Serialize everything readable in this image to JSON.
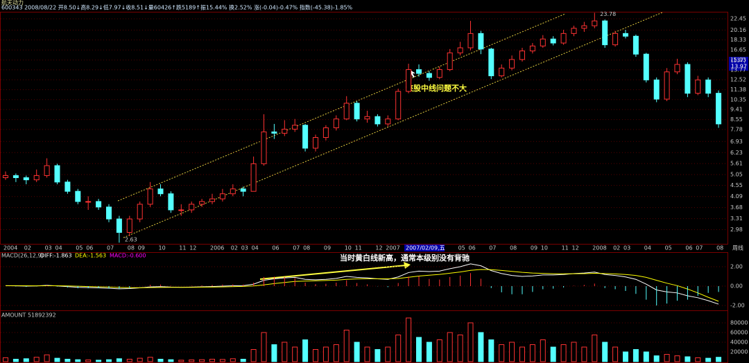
{
  "header": {
    "name": "航天动力",
    "quote": "600343 2008/08/22 开8.50↓高8.29↓低7.97↓收8.51↓量60426↑跌5189↑振15.44% 换2.52% 涨(-0.04)-0.47% 指数(-45.38)-1.85%"
  },
  "chart_data": [
    {
      "type": "candlestick",
      "period": "周线",
      "log_scale": true,
      "grid": true,
      "up_color": "#ff3232",
      "down_color": "#54ffff",
      "annotations": [
        "该股中线问题不大"
      ],
      "cursor": {
        "date": "2007/02/09,五",
        "price": 13.97,
        "index": "(137)"
      },
      "categories": [
        "2004",
        null,
        "02",
        null,
        "03",
        "04",
        null,
        "05",
        "06",
        null,
        "07",
        null,
        "08",
        "09",
        null,
        "10",
        null,
        "11",
        "12",
        null,
        "2006",
        null,
        "02",
        "03",
        "04",
        null,
        "06",
        null,
        "07",
        "08",
        null,
        "09",
        null,
        "10",
        "11",
        null,
        "12",
        "2007",
        null,
        null,
        null,
        null,
        null,
        null,
        "05",
        "06",
        null,
        "07",
        null,
        "08",
        null,
        "09",
        "10",
        null,
        "11",
        "12",
        null,
        "2008",
        null,
        "02",
        "03",
        null,
        "04",
        null,
        "05",
        null,
        "06",
        "07",
        null,
        "08"
      ],
      "open": [
        4.9,
        5.0,
        4.9,
        4.8,
        5.0,
        5.5,
        4.7,
        4.3,
        3.9,
        3.9,
        3.7,
        3.3,
        2.9,
        3.3,
        3.8,
        4.4,
        4.2,
        3.6,
        3.6,
        3.8,
        3.9,
        4.0,
        4.2,
        4.4,
        4.3,
        5.6,
        7.6,
        7.5,
        7.8,
        8.1,
        6.5,
        7.2,
        7.9,
        8.6,
        10.0,
        8.6,
        8.8,
        8.2,
        8.6,
        11.2,
        13.8,
        13.3,
        12.8,
        13.8,
        16.2,
        17.0,
        19.5,
        16.8,
        13.0,
        14.0,
        15.2,
        16.5,
        17.3,
        18.5,
        17.8,
        19.5,
        20.5,
        21.0,
        22.0,
        17.5,
        19.5,
        19.0,
        16.0,
        12.5,
        10.4,
        13.5,
        14.5,
        11.0,
        12.5,
        11.0
      ],
      "high": [
        5.2,
        5.1,
        5.0,
        5.3,
        5.9,
        5.6,
        4.8,
        4.4,
        4.1,
        4.0,
        3.8,
        3.4,
        3.4,
        3.9,
        4.7,
        4.6,
        4.3,
        3.8,
        3.9,
        4.0,
        4.2,
        4.4,
        4.6,
        4.5,
        6.0,
        9.0,
        8.2,
        8.5,
        8.6,
        8.2,
        7.4,
        8.1,
        8.9,
        10.7,
        10.2,
        9.3,
        9.0,
        8.9,
        11.5,
        14.6,
        14.5,
        13.6,
        14.2,
        16.8,
        18.0,
        22.0,
        20.0,
        17.0,
        14.5,
        15.8,
        17.0,
        17.8,
        19.2,
        19.0,
        20.2,
        21.0,
        21.8,
        23.78,
        22.3,
        20.0,
        20.2,
        19.3,
        16.2,
        12.8,
        14.0,
        15.3,
        14.8,
        13.0,
        12.8,
        11.3
      ],
      "low": [
        4.8,
        4.7,
        4.6,
        4.7,
        4.9,
        4.6,
        4.2,
        3.8,
        3.6,
        3.6,
        3.2,
        2.63,
        2.8,
        3.2,
        3.7,
        4.1,
        3.5,
        3.4,
        3.5,
        3.7,
        3.8,
        3.9,
        4.1,
        4.1,
        4.3,
        5.5,
        7.1,
        7.3,
        7.6,
        6.3,
        6.3,
        7.0,
        7.7,
        8.5,
        8.4,
        8.3,
        8.0,
        8.0,
        8.5,
        11.0,
        12.9,
        12.4,
        12.6,
        13.6,
        15.8,
        16.6,
        16.0,
        12.6,
        12.8,
        13.7,
        14.9,
        16.1,
        17.0,
        17.4,
        17.5,
        19.0,
        19.8,
        20.5,
        17.0,
        17.2,
        18.6,
        15.6,
        12.2,
        10.1,
        10.2,
        13.2,
        10.6,
        10.8,
        10.6,
        7.9
      ],
      "close": [
        5.0,
        4.9,
        4.8,
        5.0,
        5.5,
        4.7,
        4.3,
        3.9,
        3.9,
        3.7,
        3.3,
        2.9,
        3.3,
        3.8,
        4.4,
        4.2,
        3.6,
        3.6,
        3.8,
        3.9,
        4.0,
        4.2,
        4.4,
        4.3,
        5.6,
        7.6,
        7.5,
        7.8,
        8.1,
        6.5,
        7.2,
        7.9,
        8.6,
        10.0,
        8.6,
        8.8,
        8.2,
        8.6,
        11.2,
        13.8,
        13.3,
        12.8,
        13.8,
        16.2,
        17.0,
        19.5,
        16.8,
        13.0,
        14.0,
        15.2,
        16.5,
        17.3,
        18.5,
        17.8,
        19.5,
        20.5,
        21.0,
        22.0,
        17.5,
        19.5,
        19.0,
        16.0,
        12.5,
        10.4,
        13.5,
        14.5,
        11.0,
        12.5,
        11.0,
        8.2
      ],
      "ylim": [
        2.6,
        23.85
      ],
      "yticks": [
        22.45,
        20.16,
        18.33,
        16.65,
        15.13,
        13.77,
        12.52,
        11.38,
        10.35,
        9.41,
        8.55,
        7.78,
        6.93,
        6.23,
        5.61,
        5.05,
        4.55,
        4.09,
        3.68,
        3.31,
        2.98
      ]
    },
    {
      "type": "macd",
      "title": "MACD(26,12,9)",
      "grid": true,
      "annotations": [
        "当时黄白线新高，通常本级别没有背驰"
      ],
      "ylim": [
        -2.5,
        3.36
      ],
      "yticks": [
        {
          "value": 2,
          "label": "2.00"
        },
        {
          "value": 0,
          "label": "0.00"
        },
        {
          "value": -2,
          "label": "-2.00"
        }
      ],
      "series": [
        {
          "name": "DIFF",
          "label": "DIFF:-1.863",
          "color": "#ffffff",
          "values": [
            0.05,
            0.03,
            0.0,
            0.02,
            0.08,
            0.02,
            -0.05,
            -0.12,
            -0.15,
            -0.18,
            -0.22,
            -0.28,
            -0.25,
            -0.18,
            -0.08,
            -0.05,
            -0.1,
            -0.12,
            -0.1,
            -0.07,
            -0.04,
            0.0,
            0.04,
            0.05,
            0.2,
            0.6,
            0.75,
            0.85,
            0.9,
            0.7,
            0.65,
            0.7,
            0.8,
            1.0,
            0.9,
            0.85,
            0.75,
            0.7,
            0.95,
            1.4,
            1.55,
            1.5,
            1.55,
            1.8,
            2.0,
            2.3,
            2.1,
            1.6,
            1.3,
            1.1,
            1.0,
            1.05,
            1.15,
            1.15,
            1.2,
            1.3,
            1.35,
            1.45,
            1.2,
            1.1,
            0.95,
            0.7,
            0.2,
            -0.4,
            -0.6,
            -0.7,
            -1.0,
            -1.2,
            -1.5,
            -1.863
          ]
        },
        {
          "name": "DEA",
          "label": "DEA:-1.563",
          "color": "#ffff00",
          "values": [
            0.05,
            0.05,
            0.04,
            0.03,
            0.04,
            0.04,
            0.02,
            -0.01,
            -0.04,
            -0.07,
            -0.1,
            -0.14,
            -0.16,
            -0.17,
            -0.15,
            -0.13,
            -0.12,
            -0.12,
            -0.12,
            -0.11,
            -0.1,
            -0.08,
            -0.05,
            -0.03,
            0.02,
            0.13,
            0.26,
            0.38,
            0.48,
            0.52,
            0.55,
            0.58,
            0.62,
            0.7,
            0.74,
            0.76,
            0.76,
            0.75,
            0.79,
            0.91,
            1.04,
            1.13,
            1.21,
            1.33,
            1.46,
            1.63,
            1.72,
            1.7,
            1.62,
            1.52,
            1.42,
            1.35,
            1.31,
            1.28,
            1.27,
            1.28,
            1.29,
            1.32,
            1.3,
            1.26,
            1.2,
            1.1,
            0.9,
            0.6,
            0.3,
            0.05,
            -0.3,
            -0.7,
            -1.15,
            -1.563
          ]
        },
        {
          "name": "MACD",
          "label": "MACD:-0.600",
          "color": "#ff00ff",
          "values": [
            0,
            -0.04,
            -0.08,
            -0.02,
            0.08,
            -0.04,
            -0.14,
            -0.22,
            -0.22,
            -0.22,
            -0.24,
            -0.28,
            -0.18,
            -0.02,
            0.14,
            0.16,
            0.04,
            0,
            0.04,
            0.08,
            0.12,
            0.16,
            0.18,
            0.16,
            0.36,
            0.94,
            0.98,
            0.94,
            0.84,
            0.36,
            0.2,
            0.24,
            0.36,
            0.6,
            0.32,
            0.18,
            -0.02,
            -0.1,
            0.32,
            0.98,
            1.02,
            0.74,
            0.68,
            0.94,
            1.08,
            1.34,
            0.76,
            -0.2,
            -0.64,
            -0.84,
            -0.84,
            -0.6,
            -0.32,
            -0.26,
            -0.14,
            0.04,
            0.12,
            0.26,
            -0.2,
            -0.32,
            -0.5,
            -0.8,
            -1.4,
            -2.0,
            -1.8,
            -1.5,
            -1.4,
            -1.0,
            -0.7,
            -0.6
          ]
        }
      ]
    },
    {
      "type": "bar",
      "title": "AMOUNT 51892392",
      "up_color": "#ff3232",
      "down_color": "#54ffff",
      "ylim": [
        0,
        100000
      ],
      "yticks": [
        20000,
        40000,
        60000,
        80000
      ],
      "values": [
        8000,
        5000,
        6000,
        9000,
        14000,
        7000,
        5000,
        4000,
        3500,
        3000,
        4000,
        6000,
        5000,
        7000,
        9000,
        5000,
        4000,
        3000,
        3500,
        4000,
        5000,
        4500,
        6000,
        5000,
        25000,
        60000,
        35000,
        40000,
        30000,
        45000,
        25000,
        30000,
        35000,
        65000,
        40000,
        30000,
        25000,
        30000,
        55000,
        90000,
        50000,
        40000,
        45000,
        60000,
        55000,
        80000,
        60000,
        45000,
        35000,
        40000,
        30000,
        35000,
        45000,
        30000,
        35000,
        40000,
        30000,
        55000,
        40000,
        30000,
        20000,
        25000,
        20000,
        12000,
        15000,
        12000,
        10000,
        8000,
        7000,
        9000
      ]
    }
  ]
}
